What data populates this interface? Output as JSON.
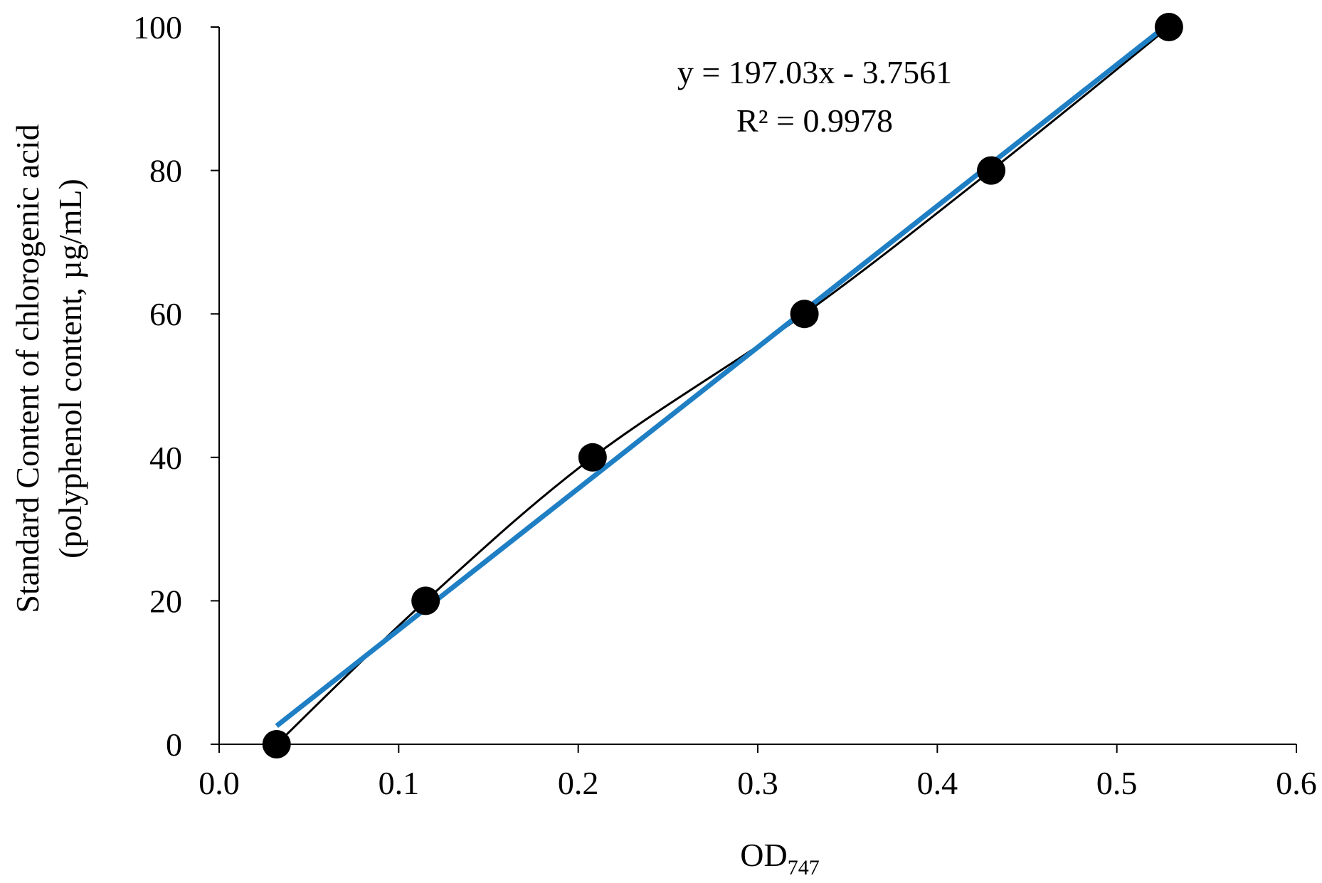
{
  "chart_data": {
    "type": "scatter",
    "title": "",
    "xlabel_main": "OD",
    "xlabel_sub": "747",
    "ylabel_line1": "Standard Content of chlorogenic acid",
    "ylabel_line2": "(polyphenol content, µg/mL)",
    "xlim": [
      0.0,
      0.6
    ],
    "ylim": [
      0,
      100
    ],
    "x_ticks": [
      "0.0",
      "0.1",
      "0.2",
      "0.3",
      "0.4",
      "0.5",
      "0.6"
    ],
    "y_ticks": [
      "0",
      "20",
      "40",
      "60",
      "80",
      "100"
    ],
    "grid": false,
    "series": [
      {
        "points": [
          {
            "x": 0.032,
            "y": 0
          },
          {
            "x": 0.115,
            "y": 20
          },
          {
            "x": 0.208,
            "y": 40
          },
          {
            "x": 0.326,
            "y": 60
          },
          {
            "x": 0.43,
            "y": 80
          },
          {
            "x": 0.529,
            "y": 100
          }
        ],
        "marker_color": "#000000",
        "line_color": "#000000",
        "line_style": "smooth"
      }
    ],
    "trendline": {
      "slope": 197.03,
      "intercept": -3.7561,
      "x_range": [
        0.032,
        0.529
      ],
      "color": "#1f7fc4"
    },
    "annotation_equation": "y = 197.03x  - 3.7561",
    "annotation_r2": "R² = 0.9978"
  }
}
